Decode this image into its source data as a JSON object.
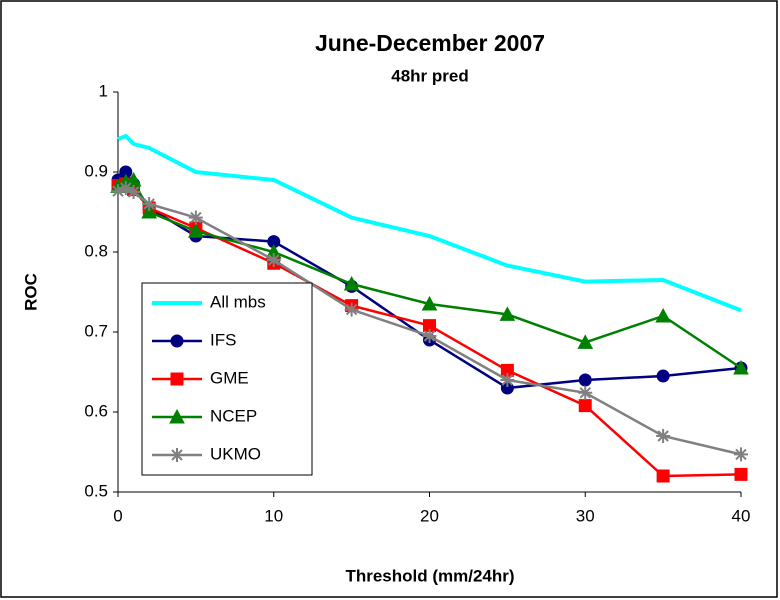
{
  "chart_data": {
    "type": "line",
    "title": "June-December 2007",
    "subtitle": "48hr pred",
    "x_label": "Threshold (mm/24hr)",
    "y_label": "ROC",
    "x": [
      0,
      0.5,
      1,
      2,
      5,
      10,
      15,
      20,
      25,
      30,
      35,
      40
    ],
    "series": [
      {
        "name": "All mbs",
        "color": "#00ffff",
        "marker": "none",
        "values": [
          0.941,
          0.945,
          0.935,
          0.93,
          0.9,
          0.89,
          0.843,
          0.82,
          0.783,
          0.763,
          0.765,
          0.727
        ]
      },
      {
        "name": "IFS",
        "color": "#000080",
        "marker": "circle",
        "values": [
          0.89,
          0.9,
          0.885,
          0.855,
          0.82,
          0.813,
          0.757,
          0.69,
          0.63,
          0.64,
          0.645,
          0.655
        ]
      },
      {
        "name": "GME",
        "color": "#ff0000",
        "marker": "square",
        "values": [
          0.883,
          0.885,
          0.878,
          0.855,
          0.83,
          0.786,
          0.733,
          0.708,
          0.652,
          0.608,
          0.52,
          0.522
        ]
      },
      {
        "name": "NCEP",
        "color": "#008000",
        "marker": "triangle",
        "values": [
          0.882,
          0.888,
          0.89,
          0.85,
          0.826,
          0.8,
          0.76,
          0.735,
          0.722,
          0.687,
          0.72,
          0.655
        ]
      },
      {
        "name": "UKMO",
        "color": "#808080",
        "marker": "star",
        "values": [
          0.876,
          0.88,
          0.875,
          0.86,
          0.843,
          0.79,
          0.728,
          0.695,
          0.64,
          0.624,
          0.57,
          0.547
        ]
      }
    ],
    "xlim": [
      0,
      40
    ],
    "xticks": [
      0,
      10,
      20,
      30,
      40
    ],
    "ylim": [
      0.5,
      1
    ],
    "yticks": [
      0.5,
      0.6,
      0.7,
      0.8,
      0.9,
      1
    ],
    "grid": false,
    "legend": "lower left"
  }
}
